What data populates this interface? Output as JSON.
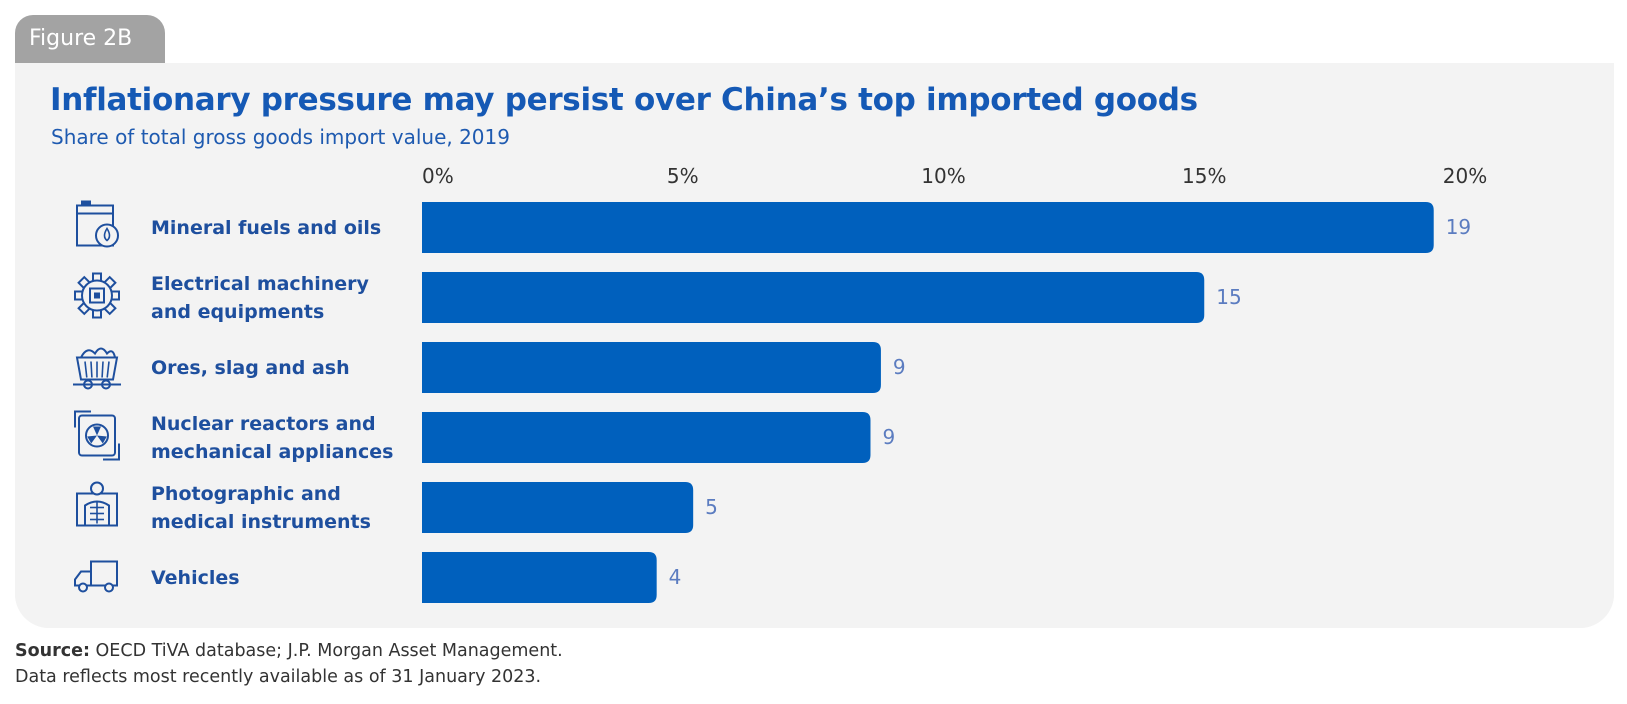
{
  "figure_tag": "Figure 2B",
  "source": {
    "label": "Source:",
    "text": " OECD TiVA database; J.P. Morgan Asset Management.",
    "note": "Data reflects most recently available as of 31 January 2023."
  },
  "colors": {
    "bar": "#0060bd",
    "text": "#1e4f9e",
    "label": "#5b7cc0",
    "panel": "#f3f3f3"
  },
  "chart_data": {
    "type": "bar",
    "orientation": "horizontal",
    "title": "Inflationary pressure may persist over China’s top imported goods",
    "subtitle": "Share of total gross goods import value, 2019",
    "categories": [
      [
        "Mineral fuels and oils"
      ],
      [
        "Electrical machinery",
        "and equipments"
      ],
      [
        "Ores, slag and ash"
      ],
      [
        "Nuclear reactors and",
        "mechanical appliances"
      ],
      [
        "Photographic and",
        "medical instruments"
      ],
      [
        "Vehicles"
      ]
    ],
    "icons": [
      "fuel-barrel-icon",
      "gear-chip-icon",
      "mine-cart-icon",
      "reactor-icon",
      "xray-person-icon",
      "truck-icon"
    ],
    "values": [
      19.4,
      15.0,
      8.8,
      8.6,
      5.2,
      4.5
    ],
    "data_labels": [
      "19",
      "15",
      "9",
      "9",
      "5",
      "4"
    ],
    "xticks": [
      "0%",
      "5%",
      "10%",
      "15%",
      "20%"
    ],
    "tick_values": [
      0,
      5,
      10,
      15,
      20
    ],
    "xlim": [
      0,
      20
    ],
    "grid": false,
    "legend": "none"
  }
}
